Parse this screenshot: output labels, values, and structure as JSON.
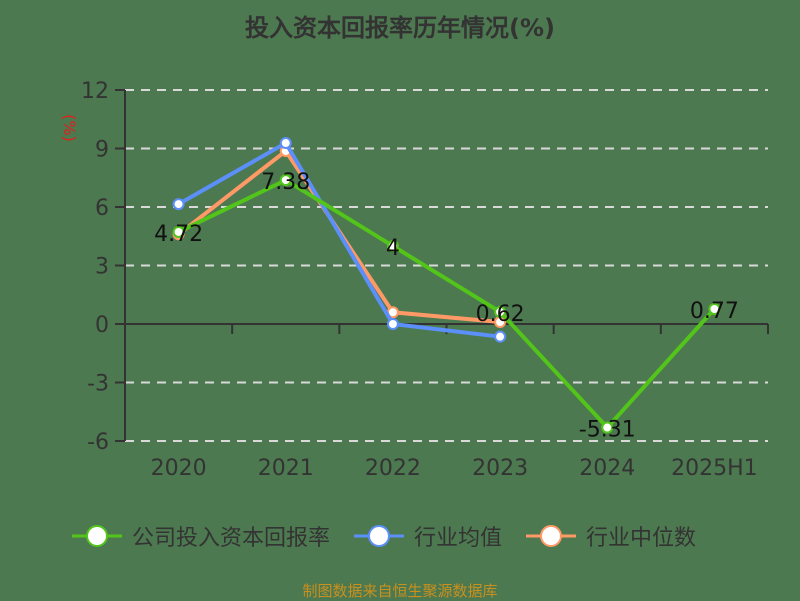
{
  "title": "投入资本回报率历年情况(%)",
  "footer": "制图数据来自恒生聚源数据库",
  "y_unit": "(%)",
  "legend": [
    {
      "label": "公司投入资本回报率",
      "color": "#52c41a"
    },
    {
      "label": "行业均值",
      "color": "#5b8ff9"
    },
    {
      "label": "行业中位数",
      "color": "#ff9966"
    }
  ],
  "chart_data": {
    "type": "line",
    "title": "投入资本回报率历年情况(%)",
    "xlabel": "",
    "ylabel": "(%)",
    "categories": [
      "2020",
      "2021",
      "2022",
      "2023",
      "2024",
      "2025H1"
    ],
    "ylim": [
      -6,
      12
    ],
    "yticks": [
      12,
      9,
      6,
      3,
      0,
      -3,
      -6
    ],
    "grid": true,
    "legend_position": "bottom",
    "series": [
      {
        "name": "公司投入资本回报率",
        "color": "#52c41a",
        "values": [
          4.72,
          7.38,
          4,
          0.62,
          -5.31,
          0.77
        ],
        "labels": [
          "4.72",
          "7.38",
          "4",
          "0.62",
          "-5.31",
          "0.77"
        ]
      },
      {
        "name": "行业均值",
        "color": "#5b8ff9",
        "values": [
          6.15,
          9.28,
          0.0,
          -0.65,
          null,
          null
        ]
      },
      {
        "name": "行业中位数",
        "color": "#ff9966",
        "values": [
          4.6,
          8.87,
          0.6,
          0.1,
          null,
          null
        ]
      }
    ]
  }
}
